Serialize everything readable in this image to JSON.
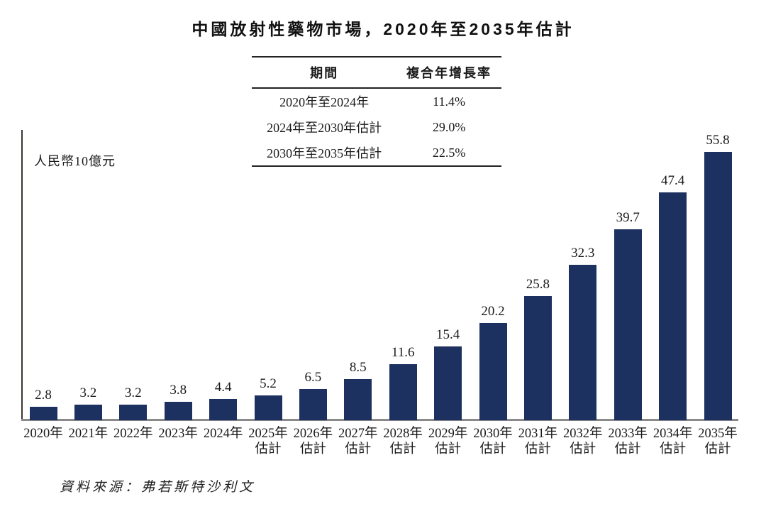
{
  "title": "中國放射性藥物市場，2020年至2035年估計",
  "y_axis_label": "人民幣10億元",
  "source": "資料來源：弗若斯特沙利文",
  "cagr_table": {
    "headers": [
      "期間",
      "複合年增長率"
    ],
    "rows": [
      {
        "period": "2020年至2024年",
        "cagr": "11.4%"
      },
      {
        "period": "2024年至2030年估計",
        "cagr": "29.0%"
      },
      {
        "period": "2030年至2035年估計",
        "cagr": "22.5%"
      }
    ]
  },
  "chart_data": {
    "type": "bar",
    "title": "中國放射性藥物市場，2020年至2035年估計",
    "ylabel": "人民幣10億元",
    "categories": [
      "2020年",
      "2021年",
      "2022年",
      "2023年",
      "2024年",
      "2025年估計",
      "2026年估計",
      "2027年估計",
      "2028年估計",
      "2029年估計",
      "2030年估計",
      "2031年估計",
      "2032年估計",
      "2033年估計",
      "2034年估計",
      "2035年估計"
    ],
    "values": [
      2.8,
      3.2,
      3.2,
      3.8,
      4.4,
      5.2,
      6.5,
      8.5,
      11.6,
      15.4,
      20.2,
      25.8,
      32.3,
      39.7,
      47.4,
      55.8
    ],
    "data_labels": true,
    "bar_color": "#1d3160",
    "axis_line_color": "#3a3632",
    "baseline_color": "#8a8a8a",
    "ylim": [
      0,
      60
    ],
    "grid": false,
    "legend": "none"
  }
}
